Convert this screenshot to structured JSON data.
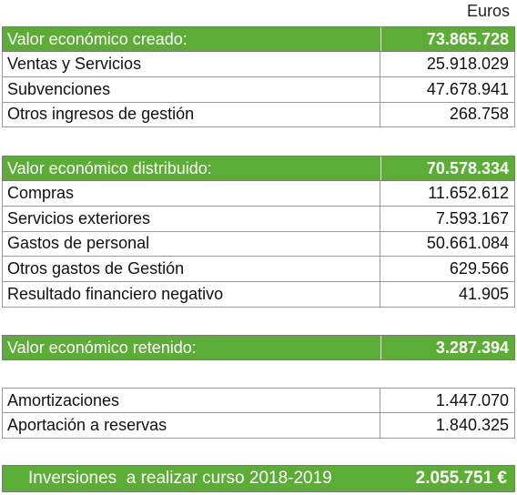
{
  "unit": "Euros",
  "blocks": [
    {
      "header": {
        "label": "Valor económico creado:",
        "value": "73.865.728"
      },
      "rows": [
        {
          "label": "Ventas y Servicios",
          "value": "25.918.029"
        },
        {
          "label": "Subvenciones",
          "value": "47.678.941"
        },
        {
          "label": "Otros ingresos de gestión",
          "value": "268.758"
        }
      ]
    },
    {
      "header": {
        "label": "Valor económico distribuido:",
        "value": "70.578.334"
      },
      "rows": [
        {
          "label": "Compras",
          "value": "11.652.612"
        },
        {
          "label": "Servicios exteriores",
          "value": "7.593.167"
        },
        {
          "label": "Gastos de personal",
          "value": "50.661.084"
        },
        {
          "label": "Otros gastos de Gestión",
          "value": "629.566"
        },
        {
          "label": "Resultado financiero negativo",
          "value": "41.905"
        }
      ]
    },
    {
      "header": {
        "label": "Valor económico retenido:",
        "value": "3.287.394"
      },
      "rows": []
    },
    {
      "rows": [
        {
          "label": "Amortizaciones",
          "value": "1.447.070"
        },
        {
          "label": "Aportación a reservas",
          "value": "1.840.325"
        }
      ]
    }
  ],
  "footer": {
    "label": "Inversiones  a realizar curso 2018-2019",
    "value": "2.055.751 €"
  }
}
